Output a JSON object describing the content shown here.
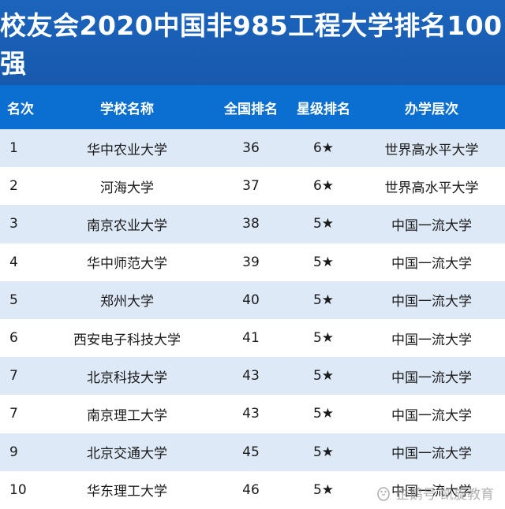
{
  "title": "校友会2020中国非985工程大学排名100强",
  "columns": [
    "名次",
    "学校名称",
    "全国排名",
    "星级排名",
    "办学层次"
  ],
  "rows": [
    {
      "rank": "1",
      "school": "华中农业大学",
      "national": "36",
      "stars": "6★",
      "level": "世界高水平大学"
    },
    {
      "rank": "2",
      "school": "河海大学",
      "national": "37",
      "stars": "6★",
      "level": "世界高水平大学"
    },
    {
      "rank": "3",
      "school": "南京农业大学",
      "national": "38",
      "stars": "5★",
      "level": "中国一流大学"
    },
    {
      "rank": "4",
      "school": "华中师范大学",
      "national": "39",
      "stars": "5★",
      "level": "中国一流大学"
    },
    {
      "rank": "5",
      "school": "郑州大学",
      "national": "40",
      "stars": "5★",
      "level": "中国一流大学"
    },
    {
      "rank": "6",
      "school": "西安电子科技大学",
      "national": "41",
      "stars": "5★",
      "level": "中国一流大学"
    },
    {
      "rank": "7",
      "school": "北京科技大学",
      "national": "43",
      "stars": "5★",
      "level": "中国一流大学"
    },
    {
      "rank": "7",
      "school": "南京理工大学",
      "national": "43",
      "stars": "5★",
      "level": "中国一流大学"
    },
    {
      "rank": "9",
      "school": "北京交通大学",
      "national": "45",
      "stars": "5★",
      "level": "中国一流大学"
    },
    {
      "rank": "10",
      "school": "华东理工大学",
      "national": "46",
      "stars": "5★",
      "level": "中国一流大学"
    }
  ],
  "watermark": {
    "icon": "penguin-icon",
    "text": "企鹅号 凯旋教育"
  },
  "colors": {
    "title_bg": "#1759ad",
    "header_bg": "#0a6fd0",
    "row_alt": "#dde9f6"
  }
}
